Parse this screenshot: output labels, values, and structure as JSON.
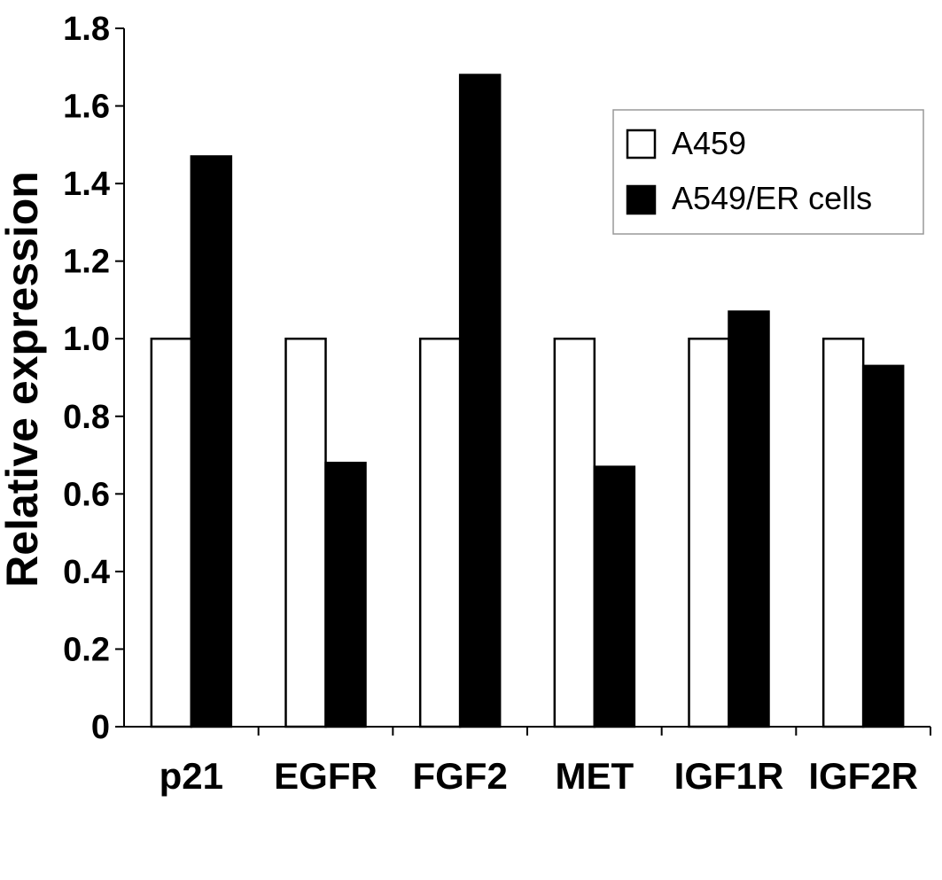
{
  "chart_data": {
    "type": "bar",
    "title": "",
    "xlabel": "",
    "ylabel": "Relative expression",
    "ylim": [
      0,
      1.8
    ],
    "yticks": [
      "0",
      "0.2",
      "0.4",
      "0.6",
      "0.8",
      "1.0",
      "1.2",
      "1.4",
      "1.6",
      "1.8"
    ],
    "categories": [
      "p21",
      "EGFR",
      "FGF2",
      "MET",
      "IGF1R",
      "IGF2R"
    ],
    "series": [
      {
        "name": "A459",
        "color": "#ffffff",
        "values": [
          1.0,
          1.0,
          1.0,
          1.0,
          1.0,
          1.0
        ]
      },
      {
        "name": "A549/ER cells",
        "color": "#000000",
        "values": [
          1.47,
          0.68,
          1.68,
          0.67,
          1.07,
          0.93
        ]
      }
    ],
    "grid": false,
    "legend": "top-right"
  }
}
